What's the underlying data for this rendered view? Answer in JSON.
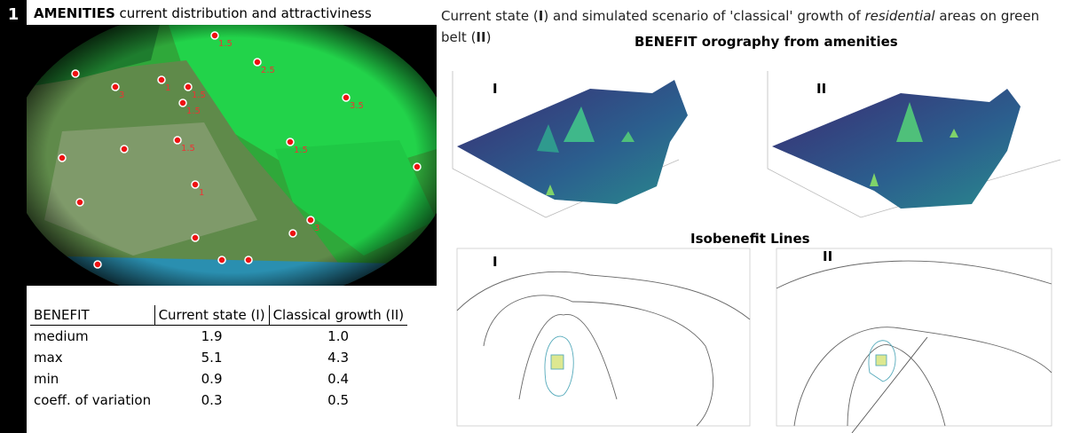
{
  "section": "1",
  "left_heading": {
    "bold": "AMENITIES",
    "rest": " current distribution and attractiviness"
  },
  "map_labels": [
    "1.5",
    "1.5",
    "2.5",
    "1",
    "3",
    "1.5",
    "1.5",
    "1.5",
    "3.5",
    "1",
    "3"
  ],
  "caption": {
    "p1": "Current state (",
    "b1": "I",
    "p2": ") and simulated scenario of 'classical' growth of ",
    "i1": "residential",
    "p3": " areas on green belt (",
    "b2": "II",
    "p4": ")"
  },
  "orography_title": "BENEFIT orography from amenities",
  "isobenefit_title": "Isobenefit Lines",
  "panel_labels": [
    "I",
    "II",
    "I",
    "II"
  ],
  "table": {
    "header": [
      "BENEFIT",
      "Current state (I)",
      "Classical growth (II)"
    ],
    "rows": [
      [
        "medium",
        "1.9",
        "1.0"
      ],
      [
        "max",
        "5.1",
        "4.3"
      ],
      [
        "min",
        "0.9",
        "0.4"
      ],
      [
        "coeff. of variation",
        "0.3",
        "0.5"
      ]
    ]
  }
}
